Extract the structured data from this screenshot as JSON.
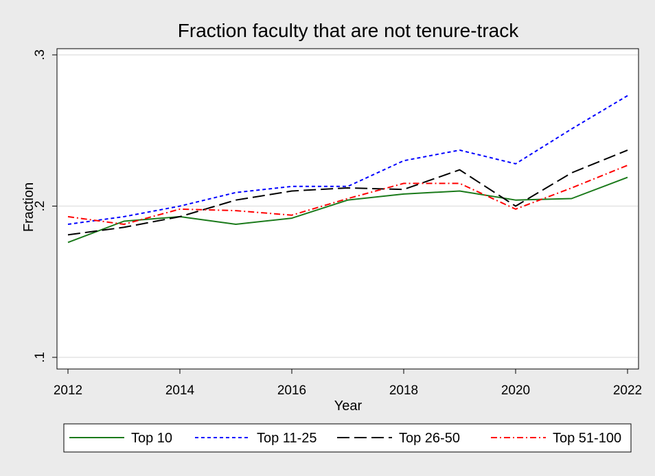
{
  "chart_data": {
    "type": "line",
    "title": "Fraction faculty that are not tenure-track",
    "xlabel": "Year",
    "ylabel": "Fraction",
    "x": [
      2012,
      2013,
      2014,
      2015,
      2016,
      2017,
      2018,
      2019,
      2020,
      2021,
      2022
    ],
    "xlim": [
      2012,
      2022
    ],
    "ylim": [
      0.1,
      0.3
    ],
    "xticks": [
      2012,
      2014,
      2016,
      2018,
      2020,
      2022
    ],
    "xtick_labels": [
      "2012",
      "2014",
      "2016",
      "2018",
      "2020",
      "2022"
    ],
    "yticks": [
      0.1,
      0.2,
      0.3
    ],
    "ytick_labels": [
      ".1",
      ".2",
      ".3"
    ],
    "grid": true,
    "legend_position": "bottom",
    "series": [
      {
        "name": "Top 10",
        "color": "#1a7a1a",
        "dash": "solid",
        "values": [
          0.176,
          0.19,
          0.193,
          0.188,
          0.192,
          0.204,
          0.208,
          0.21,
          0.204,
          0.205,
          0.219
        ]
      },
      {
        "name": "Top 11-25",
        "color": "#0000ff",
        "dash": "short-dash",
        "values": [
          0.188,
          0.193,
          0.2,
          0.209,
          0.213,
          0.213,
          0.23,
          0.237,
          0.228,
          0.251,
          0.273
        ]
      },
      {
        "name": "Top 26-50",
        "color": "#000000",
        "dash": "long-dash",
        "values": [
          0.181,
          0.186,
          0.193,
          0.204,
          0.21,
          0.212,
          0.211,
          0.224,
          0.2,
          0.222,
          0.237
        ]
      },
      {
        "name": "Top 51-100",
        "color": "#ff0000",
        "dash": "dash-dot",
        "values": [
          0.193,
          0.188,
          0.198,
          0.197,
          0.194,
          0.205,
          0.215,
          0.215,
          0.198,
          0.212,
          0.227
        ]
      }
    ]
  }
}
